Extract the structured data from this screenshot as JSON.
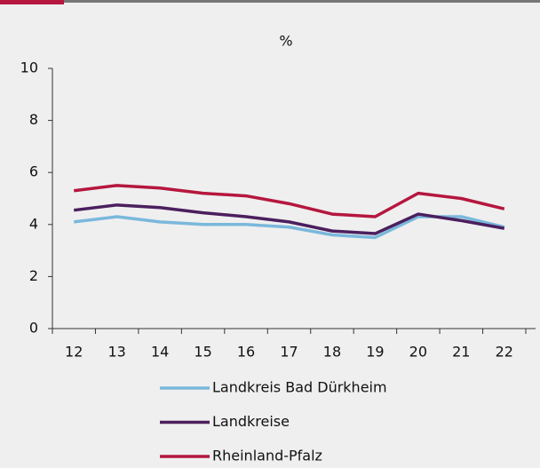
{
  "chart_data": {
    "type": "line",
    "title": "%",
    "categories": [
      "12",
      "13",
      "14",
      "15",
      "16",
      "17",
      "18",
      "19",
      "20",
      "21",
      "22"
    ],
    "series": [
      {
        "name": "Landkreis Bad Dürkheim",
        "color": "#7ab8dc",
        "values": [
          4.1,
          4.3,
          4.1,
          4.0,
          4.0,
          3.9,
          3.6,
          3.5,
          4.3,
          4.3,
          3.9
        ]
      },
      {
        "name": "Landkreise",
        "color": "#4b1f5e",
        "values": [
          4.55,
          4.75,
          4.65,
          4.45,
          4.3,
          4.1,
          3.75,
          3.65,
          4.4,
          4.15,
          3.85
        ]
      },
      {
        "name": "Rheinland-Pfalz",
        "color": "#b5173e",
        "values": [
          5.3,
          5.5,
          5.4,
          5.2,
          5.1,
          4.8,
          4.4,
          4.3,
          5.2,
          5.0,
          4.6
        ]
      }
    ],
    "ylim": [
      0,
      10
    ],
    "yticks": [
      0,
      2,
      4,
      6,
      8,
      10
    ],
    "legend": "bottom"
  }
}
